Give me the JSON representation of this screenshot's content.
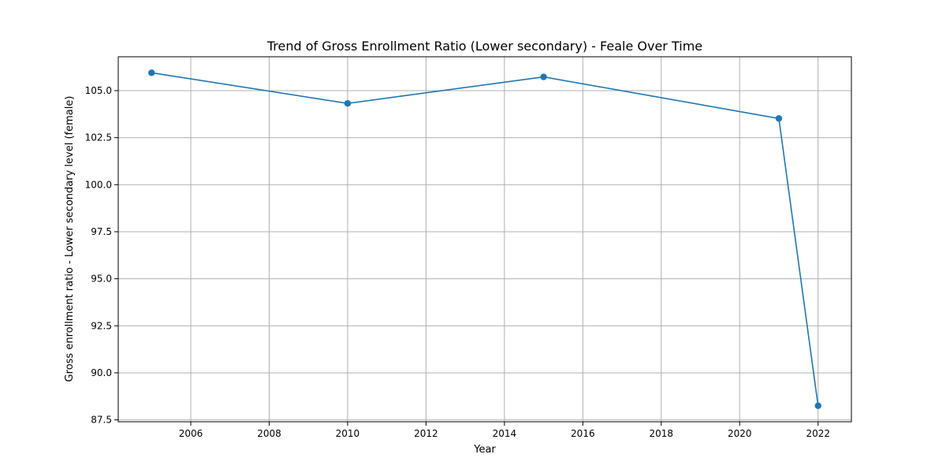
{
  "chart_data": {
    "type": "line",
    "title": "Trend of Gross Enrollment Ratio (Lower secondary) - Feale Over Time",
    "xlabel": "Year",
    "ylabel": "Gross enrollment ratio - Lower secondary level (female)",
    "x": [
      2005,
      2010,
      2015,
      2021,
      2022
    ],
    "series": [
      {
        "values": [
          105.95,
          104.32,
          105.73,
          103.52,
          88.25
        ]
      }
    ],
    "xlim": [
      2004.15,
      2022.85
    ],
    "ylim": [
      87.4,
      106.8
    ],
    "xticks": [
      2006,
      2008,
      2010,
      2012,
      2014,
      2016,
      2018,
      2020,
      2022
    ],
    "yticks": [
      87.5,
      90.0,
      92.5,
      95.0,
      97.5,
      100.0,
      102.5,
      105.0
    ],
    "xtick_labels": [
      "2006",
      "2008",
      "2010",
      "2012",
      "2014",
      "2016",
      "2018",
      "2020",
      "2022"
    ],
    "ytick_labels": [
      "87.5",
      "90.0",
      "92.5",
      "95.0",
      "97.5",
      "100.0",
      "102.5",
      "105.0"
    ],
    "grid": true,
    "colors": {
      "line": "#1f77b4",
      "marker": "#1f77b4"
    },
    "marker": "circle"
  }
}
